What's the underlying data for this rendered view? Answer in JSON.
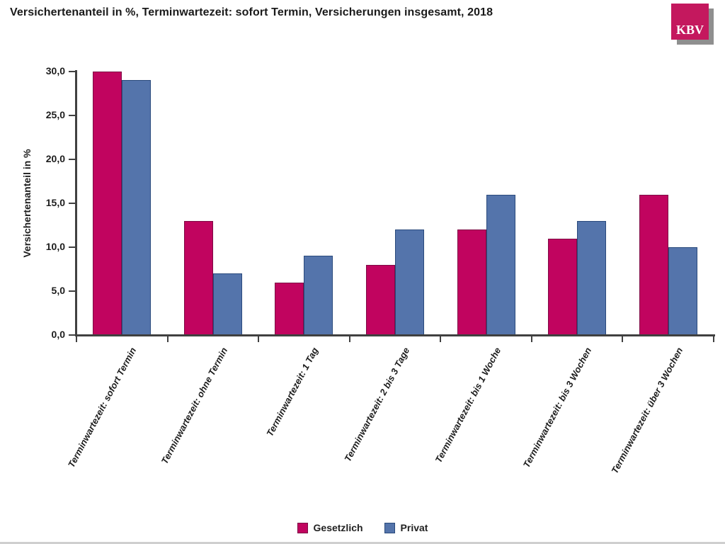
{
  "title": "Versichertenanteil in %, Terminwartezeit: sofort Termin, Versicherungen insgesamt, 2018",
  "logo": {
    "text": "KBV",
    "color": "#c4185e",
    "shadow_color": "#8f8f8f"
  },
  "chart_data": {
    "type": "bar",
    "title": "Versichertenanteil in %, Terminwartezeit: sofort Termin, Versicherungen insgesamt, 2018",
    "categories": [
      "Terminwartezeit: sofort Termin",
      "Terminwartezeit: ohne Termin",
      "Terminwartezeit: 1 Tag",
      "Terminwartezeit: 2 bis 3 Tage",
      "Terminwartezeit: bis 1 Woche",
      "Terminwartezeit: bis 3 Wochen",
      "Terminwartezeit: über 3 Wochen"
    ],
    "series": [
      {
        "name": "Gesetzlich",
        "color": "#c1045f",
        "border_color": "#7d0a45",
        "values": [
          30,
          13,
          6,
          8,
          12,
          11,
          16
        ]
      },
      {
        "name": "Privat",
        "color": "#5474ab",
        "border_color": "#2a4a7c",
        "values": [
          29,
          7,
          9,
          12,
          16,
          13,
          10
        ]
      }
    ],
    "xlabel": "",
    "ylabel": "Versichertenanteil in %",
    "ylim": [
      0,
      30
    ],
    "ytick_step": 5,
    "ytick_labels": [
      "0,0",
      "5,0",
      "10,0",
      "15,0",
      "20,0",
      "25,0",
      "30,0"
    ],
    "grid": false,
    "legend_position": "bottom"
  }
}
